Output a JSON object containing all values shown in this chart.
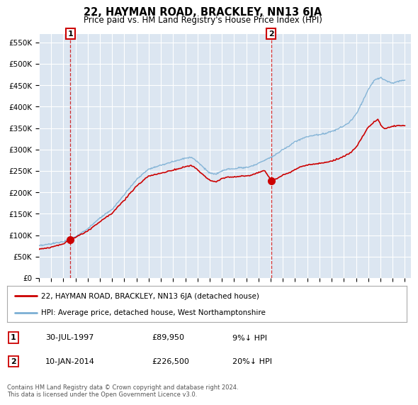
{
  "title": "22, HAYMAN ROAD, BRACKLEY, NN13 6JA",
  "subtitle": "Price paid vs. HM Land Registry's House Price Index (HPI)",
  "ylim": [
    0,
    570000
  ],
  "xlim_start": 1995.0,
  "xlim_end": 2025.5,
  "sale1_date": 1997.58,
  "sale1_price": 89950,
  "sale2_date": 2014.03,
  "sale2_price": 226500,
  "legend_line1": "22, HAYMAN ROAD, BRACKLEY, NN13 6JA (detached house)",
  "legend_line2": "HPI: Average price, detached house, West Northamptonshire",
  "footer": "Contains HM Land Registry data © Crown copyright and database right 2024.\nThis data is licensed under the Open Government Licence v3.0.",
  "line_color_red": "#cc0000",
  "line_color_blue": "#7bafd4",
  "bg_color": "#dce6f1",
  "grid_color": "#ffffff",
  "yticks": [
    0,
    50000,
    100000,
    150000,
    200000,
    250000,
    300000,
    350000,
    400000,
    450000,
    500000,
    550000
  ],
  "ylabels": [
    "£0",
    "£50K",
    "£100K",
    "£150K",
    "£200K",
    "£250K",
    "£300K",
    "£350K",
    "£400K",
    "£450K",
    "£500K",
    "£550K"
  ]
}
